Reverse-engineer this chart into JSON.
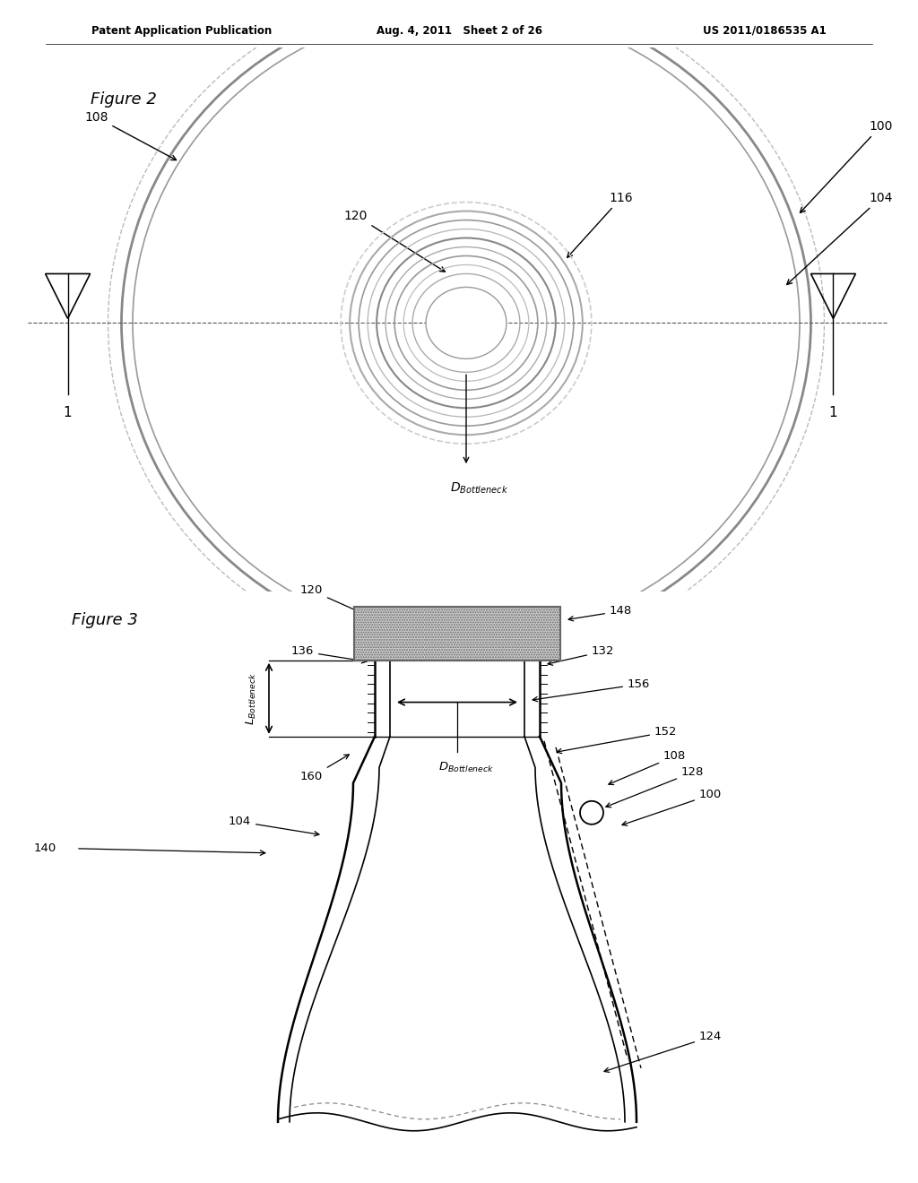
{
  "bg_color": "#ffffff",
  "header_left": "Patent Application Publication",
  "header_center": "Aug. 4, 2011   Sheet 2 of 26",
  "header_right": "US 2011/0186535 A1",
  "fig2_label": "Figure 2",
  "fig3_label": "Figure 3",
  "line_color": "#333333",
  "gray_color": "#aaaaaa",
  "hatch_color": "#bbbbbb"
}
